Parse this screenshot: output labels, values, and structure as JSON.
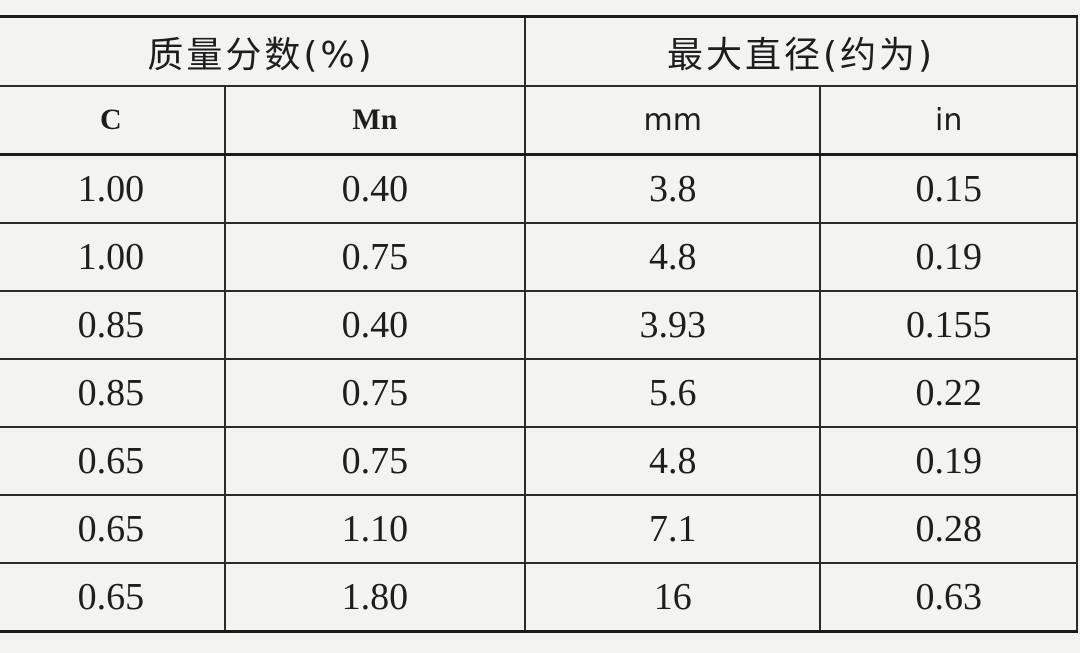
{
  "table": {
    "group_headers": [
      "质量分数(%)",
      "最大直径(约为)"
    ],
    "sub_headers": [
      "C",
      "Mn",
      "mm",
      "in"
    ],
    "rows": [
      [
        "1.00",
        "0.40",
        "3.8",
        "0.15"
      ],
      [
        "1.00",
        "0.75",
        "4.8",
        "0.19"
      ],
      [
        "0.85",
        "0.40",
        "3.93",
        "0.155"
      ],
      [
        "0.85",
        "0.75",
        "5.6",
        "0.22"
      ],
      [
        "0.65",
        "0.75",
        "4.8",
        "0.19"
      ],
      [
        "0.65",
        "1.10",
        "7.1",
        "0.28"
      ],
      [
        "0.65",
        "1.80",
        "16",
        "0.63"
      ]
    ]
  }
}
